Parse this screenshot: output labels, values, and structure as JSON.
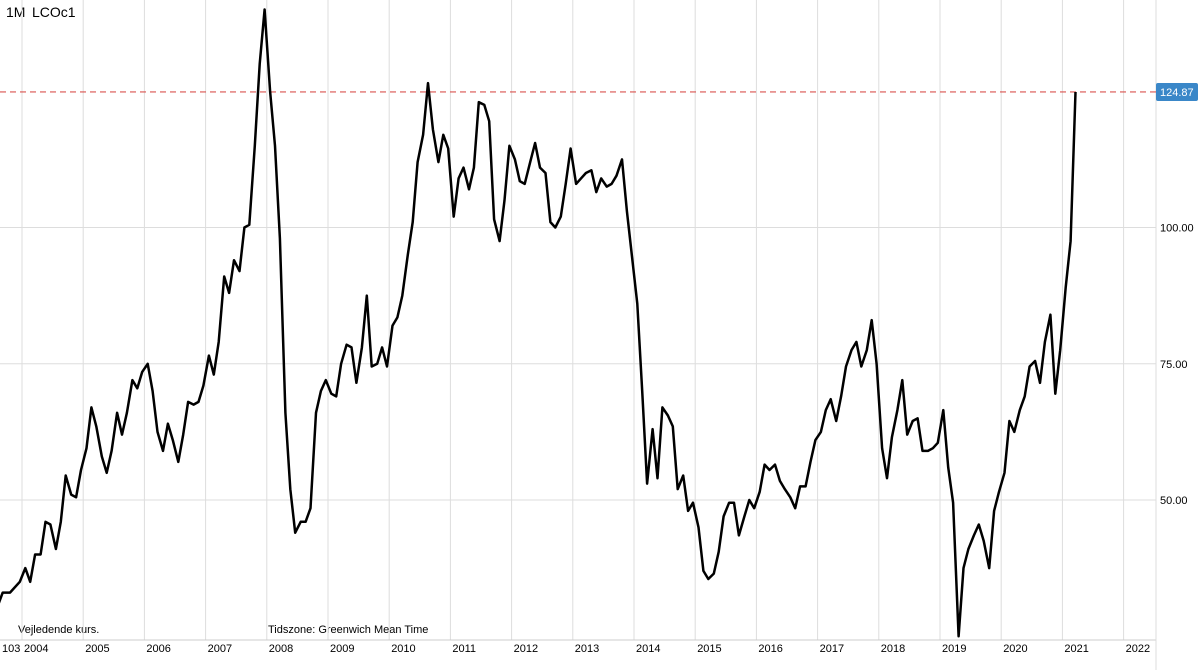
{
  "header": {
    "interval": "1M",
    "symbol": "LCOc1"
  },
  "notes": {
    "indicative": "Vejledende kurs.",
    "timezone": "Tidszone: Greenwich Mean Time"
  },
  "last_price_label": "124.87",
  "colors": {
    "line": "#000000",
    "grid": "#dddddd",
    "ref_line": "#d9534f",
    "badge": "#3a87c8"
  },
  "chart_data": {
    "type": "line",
    "title": "",
    "xlabel": "",
    "ylabel": "",
    "x_tick_labels": [
      "103",
      "2004",
      "2005",
      "2006",
      "2007",
      "2008",
      "2009",
      "2010",
      "2011",
      "2012",
      "2013",
      "2014",
      "2015",
      "2016",
      "2017",
      "2018",
      "2019",
      "2020",
      "2021",
      "2022"
    ],
    "y_ticks": [
      50,
      75,
      100
    ],
    "y_tick_labels": [
      "50.00",
      "75.00",
      "100.00"
    ],
    "ylim": [
      28,
      140
    ],
    "xlim": [
      2003.3,
      2022.7
    ],
    "reference_line": 124.87,
    "grid": true,
    "series": [
      {
        "values": [
          [
            2003.3,
            29.0
          ],
          [
            2003.5,
            29.0
          ],
          [
            2003.6,
            31.0
          ],
          [
            2003.7,
            30.0
          ],
          [
            2003.8,
            33.0
          ],
          [
            2003.92,
            33.0
          ],
          [
            2004.08,
            35.0
          ],
          [
            2004.17,
            37.5
          ],
          [
            2004.25,
            35.0
          ],
          [
            2004.33,
            40.0
          ],
          [
            2004.42,
            40.0
          ],
          [
            2004.5,
            46.0
          ],
          [
            2004.58,
            45.5
          ],
          [
            2004.67,
            41.0
          ],
          [
            2004.75,
            46.0
          ],
          [
            2004.83,
            54.5
          ],
          [
            2004.92,
            51.0
          ],
          [
            2005.0,
            50.5
          ],
          [
            2005.08,
            55.5
          ],
          [
            2005.17,
            59.5
          ],
          [
            2005.25,
            67.0
          ],
          [
            2005.33,
            63.5
          ],
          [
            2005.42,
            58.0
          ],
          [
            2005.5,
            55.0
          ],
          [
            2005.58,
            59.0
          ],
          [
            2005.67,
            66.0
          ],
          [
            2005.75,
            62.0
          ],
          [
            2005.83,
            66.0
          ],
          [
            2005.92,
            72.0
          ],
          [
            2006.0,
            70.5
          ],
          [
            2006.08,
            73.5
          ],
          [
            2006.17,
            75.0
          ],
          [
            2006.25,
            70.0
          ],
          [
            2006.33,
            62.5
          ],
          [
            2006.42,
            59.0
          ],
          [
            2006.5,
            64.0
          ],
          [
            2006.58,
            61.0
          ],
          [
            2006.67,
            57.0
          ],
          [
            2006.75,
            62.0
          ],
          [
            2006.83,
            68.0
          ],
          [
            2006.92,
            67.5
          ],
          [
            2007.0,
            68.0
          ],
          [
            2007.08,
            71.0
          ],
          [
            2007.17,
            76.5
          ],
          [
            2007.25,
            73.0
          ],
          [
            2007.33,
            79.0
          ],
          [
            2007.42,
            91.0
          ],
          [
            2007.5,
            88.0
          ],
          [
            2007.58,
            94.0
          ],
          [
            2007.67,
            92.0
          ],
          [
            2007.75,
            100.0
          ],
          [
            2007.83,
            100.5
          ],
          [
            2007.92,
            115.0
          ],
          [
            2008.0,
            130.0
          ],
          [
            2008.08,
            140.0
          ],
          [
            2008.17,
            125.0
          ],
          [
            2008.25,
            115.0
          ],
          [
            2008.33,
            98.0
          ],
          [
            2008.42,
            66.0
          ],
          [
            2008.5,
            52.0
          ],
          [
            2008.58,
            44.0
          ],
          [
            2008.67,
            46.0
          ],
          [
            2008.75,
            46.0
          ],
          [
            2008.83,
            48.5
          ],
          [
            2008.92,
            66.0
          ],
          [
            2009.0,
            70.0
          ],
          [
            2009.08,
            72.0
          ],
          [
            2009.17,
            69.5
          ],
          [
            2009.25,
            69.0
          ],
          [
            2009.33,
            75.0
          ],
          [
            2009.42,
            78.5
          ],
          [
            2009.5,
            78.0
          ],
          [
            2009.58,
            71.5
          ],
          [
            2009.67,
            78.0
          ],
          [
            2009.75,
            87.5
          ],
          [
            2009.83,
            74.5
          ],
          [
            2009.92,
            75.0
          ],
          [
            2010.0,
            78.0
          ],
          [
            2010.08,
            74.5
          ],
          [
            2010.17,
            82.0
          ],
          [
            2010.25,
            83.5
          ],
          [
            2010.33,
            87.5
          ],
          [
            2010.42,
            95.0
          ],
          [
            2010.5,
            101.0
          ],
          [
            2010.58,
            112.0
          ],
          [
            2010.67,
            117.0
          ],
          [
            2010.75,
            126.5
          ],
          [
            2010.83,
            118.0
          ],
          [
            2010.92,
            112.0
          ],
          [
            2011.0,
            117.0
          ],
          [
            2011.08,
            114.5
          ],
          [
            2011.17,
            102.0
          ],
          [
            2011.25,
            109.0
          ],
          [
            2011.33,
            111.0
          ],
          [
            2011.42,
            107.0
          ],
          [
            2011.5,
            111.0
          ],
          [
            2011.58,
            123.0
          ],
          [
            2011.67,
            122.5
          ],
          [
            2011.75,
            119.5
          ],
          [
            2011.83,
            101.5
          ],
          [
            2011.92,
            97.5
          ],
          [
            2012.0,
            105.0
          ],
          [
            2012.08,
            115.0
          ],
          [
            2012.17,
            112.5
          ],
          [
            2012.25,
            108.5
          ],
          [
            2012.33,
            108.0
          ],
          [
            2012.42,
            112.0
          ],
          [
            2012.5,
            115.5
          ],
          [
            2012.58,
            111.0
          ],
          [
            2012.67,
            110.0
          ],
          [
            2012.75,
            101.0
          ],
          [
            2012.83,
            100.0
          ],
          [
            2012.92,
            102.0
          ],
          [
            2013.0,
            108.0
          ],
          [
            2013.08,
            114.5
          ],
          [
            2013.17,
            108.0
          ],
          [
            2013.25,
            109.0
          ],
          [
            2013.33,
            110.0
          ],
          [
            2013.42,
            110.5
          ],
          [
            2013.5,
            106.5
          ],
          [
            2013.58,
            109.0
          ],
          [
            2013.67,
            107.5
          ],
          [
            2013.75,
            108.0
          ],
          [
            2013.83,
            109.5
          ],
          [
            2013.92,
            112.5
          ],
          [
            2014.0,
            103.0
          ],
          [
            2014.08,
            95.0
          ],
          [
            2014.17,
            86.0
          ],
          [
            2014.25,
            70.0
          ],
          [
            2014.33,
            53.0
          ],
          [
            2014.42,
            63.0
          ],
          [
            2014.5,
            54.0
          ],
          [
            2014.58,
            67.0
          ],
          [
            2014.67,
            65.5
          ],
          [
            2014.75,
            63.5
          ],
          [
            2014.83,
            52.0
          ],
          [
            2014.92,
            54.5
          ],
          [
            2015.0,
            48.0
          ],
          [
            2015.08,
            49.5
          ],
          [
            2015.17,
            45.0
          ],
          [
            2015.25,
            37.0
          ],
          [
            2015.33,
            35.5
          ],
          [
            2015.42,
            36.5
          ],
          [
            2015.5,
            40.5
          ],
          [
            2015.58,
            47.0
          ],
          [
            2015.67,
            49.5
          ],
          [
            2015.75,
            49.5
          ],
          [
            2015.83,
            43.5
          ],
          [
            2015.92,
            47.0
          ],
          [
            2016.0,
            50.0
          ],
          [
            2016.08,
            48.5
          ],
          [
            2016.17,
            51.5
          ],
          [
            2016.25,
            56.5
          ],
          [
            2016.33,
            55.5
          ],
          [
            2016.42,
            56.5
          ],
          [
            2016.5,
            53.5
          ],
          [
            2016.58,
            52.0
          ],
          [
            2016.67,
            50.5
          ],
          [
            2016.75,
            48.5
          ],
          [
            2016.83,
            52.5
          ],
          [
            2016.92,
            52.5
          ],
          [
            2017.0,
            57.0
          ],
          [
            2017.08,
            61.0
          ],
          [
            2017.17,
            62.5
          ],
          [
            2017.25,
            66.5
          ],
          [
            2017.33,
            68.5
          ],
          [
            2017.42,
            64.5
          ],
          [
            2017.5,
            69.0
          ],
          [
            2017.58,
            74.5
          ],
          [
            2017.67,
            77.5
          ],
          [
            2017.75,
            79.0
          ],
          [
            2017.83,
            74.5
          ],
          [
            2017.92,
            77.5
          ],
          [
            2018.0,
            83.0
          ],
          [
            2018.08,
            75.0
          ],
          [
            2018.17,
            59.5
          ],
          [
            2018.25,
            54.0
          ],
          [
            2018.33,
            61.5
          ],
          [
            2018.42,
            66.5
          ],
          [
            2018.5,
            72.0
          ],
          [
            2018.58,
            62.0
          ],
          [
            2018.67,
            64.5
          ],
          [
            2018.75,
            65.0
          ],
          [
            2018.83,
            59.0
          ],
          [
            2018.92,
            59.0
          ],
          [
            2019.0,
            59.5
          ],
          [
            2019.08,
            60.5
          ],
          [
            2019.17,
            66.5
          ],
          [
            2019.25,
            56.0
          ],
          [
            2019.33,
            49.5
          ],
          [
            2019.42,
            25.0
          ],
          [
            2019.5,
            37.5
          ],
          [
            2019.58,
            41.0
          ],
          [
            2019.67,
            43.5
          ],
          [
            2019.75,
            45.5
          ],
          [
            2019.83,
            42.5
          ],
          [
            2019.92,
            37.5
          ],
          [
            2020.0,
            48.0
          ],
          [
            2020.08,
            51.5
          ],
          [
            2020.17,
            55.0
          ],
          [
            2020.25,
            64.5
          ],
          [
            2020.33,
            62.5
          ],
          [
            2020.42,
            66.5
          ],
          [
            2020.5,
            69.0
          ],
          [
            2020.58,
            74.5
          ],
          [
            2020.67,
            75.5
          ],
          [
            2020.75,
            71.5
          ],
          [
            2020.83,
            79.0
          ],
          [
            2020.92,
            84.0
          ],
          [
            2021.0,
            69.5
          ],
          [
            2021.08,
            77.5
          ],
          [
            2021.17,
            89.0
          ],
          [
            2021.25,
            97.5
          ],
          [
            2021.33,
            124.87
          ]
        ]
      }
    ]
  }
}
